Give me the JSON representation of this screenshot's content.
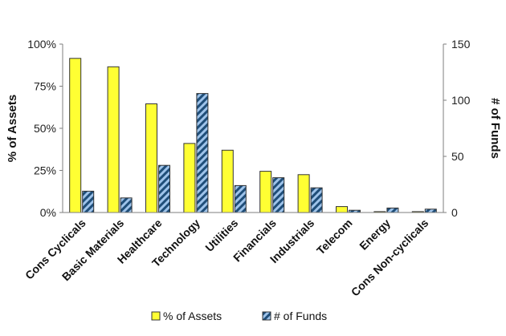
{
  "chart_data": {
    "type": "bar",
    "categories": [
      "Cons Cyclicals",
      "Basic Materials",
      "Healthcare",
      "Technology",
      "Utilities",
      "Financials",
      "Industrials",
      "Telecom",
      "Energy",
      "Cons Non-cyclicals"
    ],
    "series": [
      {
        "name": "% of Assets",
        "axis": "left",
        "color": "#ffff33",
        "pattern": "solid",
        "values": [
          91.5,
          86.5,
          64.5,
          41,
          37,
          24.5,
          22.5,
          3.5,
          0.5,
          0.5
        ]
      },
      {
        "name": "# of Funds",
        "axis": "right",
        "color": "#1f4e79",
        "stripe_color": "#9ec3ea",
        "pattern": "diagonal-stripes",
        "values": [
          19,
          13,
          42,
          106,
          24,
          31,
          22,
          2,
          4,
          3
        ]
      }
    ],
    "ylabel_left": "% of Assets",
    "ylabel_right": "# of Funds",
    "ylim_left": [
      0,
      100
    ],
    "ylim_right": [
      0,
      150
    ],
    "yticks_left": [
      "0%",
      "25%",
      "50%",
      "75%",
      "100%"
    ],
    "yticks_right": [
      "0",
      "50",
      "100",
      "150"
    ],
    "grid": false,
    "legend_position": "bottom"
  }
}
